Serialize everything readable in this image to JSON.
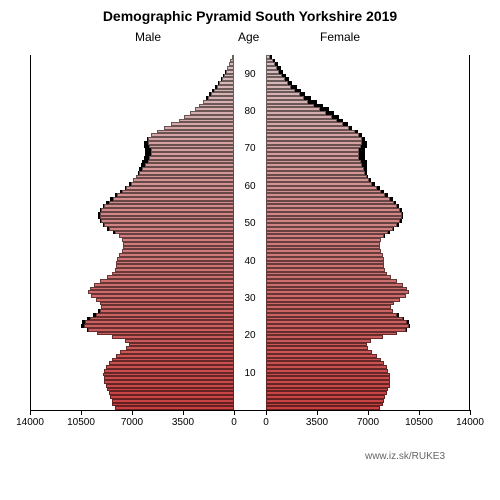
{
  "title": "Demographic Pyramid South Yorkshire 2019",
  "title_fontsize": 14,
  "labels": {
    "male": "Male",
    "female": "Female",
    "age": "Age"
  },
  "label_fontsize": 12,
  "source_text": "www.iz.sk/RUKE3",
  "source_fontsize": 10,
  "chart": {
    "type": "population-pyramid",
    "background_color": "#ffffff",
    "axis_color": "#000000",
    "shadow_color": "#000000",
    "x_max": 14000,
    "x_ticks": [
      14000,
      10500,
      7000,
      3500,
      0
    ],
    "x_ticks_right": [
      0,
      3500,
      7000,
      10500,
      14000
    ],
    "age_max": 95,
    "age_ticks": [
      10,
      20,
      30,
      40,
      50,
      60,
      70,
      80,
      90
    ],
    "color_top": "#d8c0c0",
    "color_bottom": "#c84040",
    "male": [
      8200,
      8400,
      8400,
      8500,
      8600,
      8700,
      8800,
      8900,
      8900,
      9000,
      8900,
      8800,
      8600,
      8400,
      8100,
      7800,
      7400,
      7200,
      7500,
      8400,
      9400,
      10000,
      10300,
      10200,
      9900,
      9500,
      9200,
      9100,
      9200,
      9500,
      9800,
      10000,
      9900,
      9600,
      9200,
      8700,
      8400,
      8200,
      8100,
      8100,
      8000,
      7900,
      7700,
      7600,
      7600,
      7700,
      7900,
      8200,
      8600,
      8900,
      9100,
      9200,
      9200,
      9100,
      8900,
      8600,
      8300,
      8000,
      7700,
      7400,
      7100,
      6900,
      6700,
      6500,
      6300,
      6100,
      5900,
      5800,
      5700,
      5700,
      5800,
      5900,
      5900,
      5700,
      5300,
      4800,
      4300,
      3800,
      3400,
      3000,
      2700,
      2400,
      2100,
      1800,
      1600,
      1400,
      1200,
      1000,
      850,
      700,
      580,
      460,
      350,
      250,
      160
    ],
    "female": [
      7800,
      8000,
      8100,
      8200,
      8300,
      8400,
      8500,
      8500,
      8500,
      8500,
      8400,
      8300,
      8100,
      7900,
      7600,
      7300,
      7000,
      6900,
      7200,
      8000,
      9000,
      9600,
      9800,
      9700,
      9400,
      9000,
      8700,
      8600,
      8800,
      9200,
      9600,
      9800,
      9700,
      9400,
      9000,
      8600,
      8300,
      8200,
      8100,
      8100,
      8100,
      8000,
      7900,
      7800,
      7800,
      7900,
      8100,
      8400,
      8700,
      9000,
      9200,
      9300,
      9300,
      9200,
      9000,
      8800,
      8500,
      8200,
      7900,
      7600,
      7300,
      7100,
      6900,
      6800,
      6700,
      6600,
      6500,
      6400,
      6400,
      6400,
      6500,
      6600,
      6600,
      6400,
      6100,
      5700,
      5300,
      4900,
      4500,
      4100,
      3700,
      3300,
      2900,
      2600,
      2300,
      2000,
      1700,
      1500,
      1300,
      1100,
      900,
      750,
      600,
      450,
      300
    ],
    "male_prev": [
      8000,
      8300,
      8400,
      8500,
      8500,
      8600,
      8700,
      8800,
      8800,
      8900,
      8800,
      8700,
      8500,
      8200,
      7900,
      7500,
      7000,
      6800,
      7200,
      8200,
      9400,
      10100,
      10500,
      10400,
      10100,
      9700,
      9300,
      9100,
      9100,
      9300,
      9600,
      9800,
      9700,
      9400,
      8900,
      8400,
      8100,
      8000,
      7900,
      7900,
      7800,
      7700,
      7500,
      7400,
      7400,
      7600,
      7900,
      8300,
      8700,
      9000,
      9200,
      9300,
      9300,
      9200,
      9000,
      8800,
      8500,
      8200,
      7800,
      7500,
      7200,
      6900,
      6700,
      6600,
      6500,
      6400,
      6300,
      6200,
      6100,
      6100,
      6200,
      6200,
      6000,
      5700,
      5200,
      4700,
      4200,
      3700,
      3300,
      3000,
      2700,
      2400,
      2100,
      1900,
      1700,
      1500,
      1300,
      1100,
      900,
      750,
      600,
      480,
      360,
      260,
      170
    ],
    "female_prev": [
      7600,
      7900,
      8000,
      8100,
      8200,
      8300,
      8400,
      8400,
      8400,
      8400,
      8300,
      8200,
      8000,
      7700,
      7400,
      7000,
      6600,
      6500,
      6900,
      7800,
      9000,
      9700,
      9900,
      9800,
      9500,
      9100,
      8700,
      8500,
      8600,
      9000,
      9400,
      9600,
      9500,
      9200,
      8800,
      8400,
      8100,
      8000,
      8000,
      8000,
      8000,
      7900,
      7800,
      7700,
      7700,
      7900,
      8200,
      8500,
      8800,
      9100,
      9300,
      9400,
      9400,
      9300,
      9100,
      8900,
      8700,
      8400,
      8100,
      7800,
      7500,
      7200,
      7000,
      6900,
      6900,
      6900,
      6900,
      6800,
      6800,
      6800,
      6900,
      6900,
      6800,
      6600,
      6300,
      5900,
      5600,
      5300,
      5000,
      4700,
      4300,
      3900,
      3500,
      3100,
      2700,
      2400,
      2100,
      1800,
      1600,
      1400,
      1200,
      1000,
      800,
      600,
      400
    ]
  }
}
